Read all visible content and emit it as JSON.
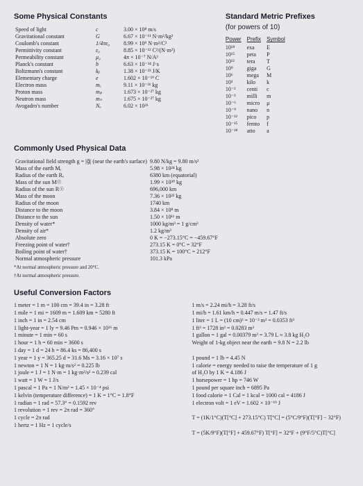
{
  "headings": {
    "constants": "Some Physical Constants",
    "prefixes": "Standard Metric Prefixes",
    "prefixes_sub": "(for powers of 10)",
    "physdata": "Commonly Used Physical Data",
    "factors": "Useful Conversion Factors"
  },
  "constants": [
    {
      "name": "Speed of light",
      "sym": "c",
      "val": "3.00 × 10⁸ m/s"
    },
    {
      "name": "Gravitational constant",
      "sym": "G",
      "val": "6.67 × 10⁻¹¹ N·m²/kg²"
    },
    {
      "name": "Coulomb's constant",
      "sym": "1/4πε₀",
      "val": "8.99 × 10⁹ N·m²/C²"
    },
    {
      "name": "Permittivity constant",
      "sym": "ε₀",
      "val": "8.85 × 10⁻¹² C²/(N·m²)"
    },
    {
      "name": "Permeability constant",
      "sym": "μ₀",
      "val": "4π × 10⁻⁷ N/A²"
    },
    {
      "name": "Planck's constant",
      "sym": "h",
      "val": "6.63 × 10⁻³⁴ J·s"
    },
    {
      "name": "Boltzmann's constant",
      "sym": "kᵦ",
      "val": "1.38 × 10⁻²³ J/K"
    },
    {
      "name": "Elementary charge",
      "sym": "e",
      "val": "1.602 × 10⁻¹⁹ C"
    },
    {
      "name": "Electron mass",
      "sym": "mₑ",
      "val": "9.11 × 10⁻³¹ kg"
    },
    {
      "name": "Proton mass",
      "sym": "mₚ",
      "val": "1.673 × 10⁻²⁷ kg"
    },
    {
      "name": "Neutron mass",
      "sym": "mₙ",
      "val": "1.675 × 10⁻²⁷ kg"
    },
    {
      "name": "Avogadro's number",
      "sym": "Nₐ",
      "val": "6.02 × 10²³"
    }
  ],
  "prefixes_header": {
    "c1": "Power",
    "c2": "Prefix",
    "c3": "Symbol"
  },
  "prefixes": [
    {
      "p": "10¹⁸",
      "n": "exa",
      "s": "E"
    },
    {
      "p": "10¹⁵",
      "n": "peta",
      "s": "P"
    },
    {
      "p": "10¹²",
      "n": "tera",
      "s": "T"
    },
    {
      "p": "10⁹",
      "n": "giga",
      "s": "G"
    },
    {
      "p": "10⁶",
      "n": "mega",
      "s": "M"
    },
    {
      "p": "10³",
      "n": "kilo",
      "s": "k"
    },
    {
      "p": "10⁻²",
      "n": "centi",
      "s": "c"
    },
    {
      "p": "10⁻³",
      "n": "milli",
      "s": "m"
    },
    {
      "p": "10⁻⁶",
      "n": "micro",
      "s": "μ"
    },
    {
      "p": "10⁻⁹",
      "n": "nano",
      "s": "n"
    },
    {
      "p": "10⁻¹²",
      "n": "pico",
      "s": "p"
    },
    {
      "p": "10⁻¹⁵",
      "n": "femto",
      "s": "f"
    },
    {
      "p": "10⁻¹⁸",
      "n": "atto",
      "s": "a"
    }
  ],
  "physdata": [
    {
      "k": "Gravitational field strength g = |g⃗| (near the earth's surface)",
      "v": "9.80 N/kg = 9.80 m/s²"
    },
    {
      "k": "Mass of the earth Mₑ",
      "v": "5.98 × 10²⁴ kg"
    },
    {
      "k": "Radius of the earth Rₑ",
      "v": "6380 km (equatorial)"
    },
    {
      "k": "Mass of the sun M☉",
      "v": "1.99 × 10³⁰ kg"
    },
    {
      "k": "Radius of the sun R☉",
      "v": "696,000 km"
    },
    {
      "k": "Mass of the moon",
      "v": "7.36 × 10²² kg"
    },
    {
      "k": "Radius of the moon",
      "v": "1740 km"
    },
    {
      "k": "Distance to the moon",
      "v": "3.84 × 10⁸ m"
    },
    {
      "k": "Distance to the sun",
      "v": "1.50 × 10¹¹ m"
    },
    {
      "k": "Density of water*",
      "v": "1000 kg/m³ = 1 g/cm³"
    },
    {
      "k": "Density of air*",
      "v": "1.2 kg/m³"
    },
    {
      "k": "Absolute zero",
      "v": "0 K = −273.15°C = −459.67°F"
    },
    {
      "k": "Freezing point of water†",
      "v": "273.15 K = 0°C = 32°F"
    },
    {
      "k": "Boiling point of water†",
      "v": "373.15 K = 100°C = 212°F"
    },
    {
      "k": "Normal atmospheric pressure",
      "v": "101.3 kPa"
    }
  ],
  "footnotes": {
    "a": "*At normal atmospheric pressure and 20°C.",
    "b": "†At normal atmospheric pressure."
  },
  "conv_left": [
    "1 meter = 1 m = 100 cm = 39.4 in = 3.28 ft",
    "1 mile = 1 mi = 1609 m = 1.609 km = 5280 ft",
    "1 inch = 1 in = 2.54 cm",
    "1 light-year = 1 ly = 9.46 Pm = 0.946 × 10¹⁶ m",
    "1 minute = 1 min = 60 s",
    "1 hour = 1 h = 60 min = 3600 s",
    "1 day = 1 d = 24 h = 86.4 ks = 86,400 s",
    "1 year = 1 y = 365.25 d = 31.6 Ms = 3.16 × 10⁷ s",
    "1 newton = 1 N = 1 kg·m/s² = 0.225 lb",
    "1 joule = 1 J = 1 N·m = 1 kg·m²/s² = 0.239 cal",
    "1 watt = 1 W = 1 J/s",
    "1 pascal = 1 Pa = 1 N/m² = 1.45 × 10⁻⁴ psi",
    "1 kelvin (temperature difference) = 1 K = 1°C = 1.8°F",
    "1 radian = 1 rad = 57.3° = 0.1592 rev",
    "1 revolution = 1 rev = 2π rad = 360°",
    "1 cycle = 2π rad",
    "1 hertz = 1 Hz = 1 cycle/s"
  ],
  "conv_right": [
    "1 m/s = 2.24 mi/h = 3.28 ft/s",
    "1 mi/h = 1.61 km/h = 0.447 m/s = 1.47 ft/s",
    "1 liter = 1 L = (10 cm)³ = 10⁻³ m³ = 0.0353 ft³",
    "1 ft³ = 1728 in³ = 0.0283 m³",
    "1 gallon = 1 gal = 0.00379 m³ = 3.79 L ≈ 3.8 kg H₂O",
    "Weight of 1-kg object near the earth = 9.8 N = 2.2 lb",
    "",
    "1 pound = 1 lb = 4.45 N",
    "1 calorie = energy needed to raise the temperature of 1 g",
    "                    of H₂O by 1 K = 4.186 J",
    "1 horsepower = 1 hp = 746 W",
    "1 pound per square inch = 6895 Pa",
    "1 food calorie = 1 Cal = 1 kcal = 1000 cal = 4186 J",
    "1 electron volt = 1 eV = 1.602 × 10⁻¹⁹ J",
    "",
    "T = (1K/1°C)(T[°C] + 273.15°C)     T[°C] = (5°C/9°F)(T[°F] − 32°F)",
    "",
    "T = (5K/9°F)(T[°F] + 459.67°F)     T[°F] = 32°F + (9°F/5°C)T[°C]"
  ]
}
